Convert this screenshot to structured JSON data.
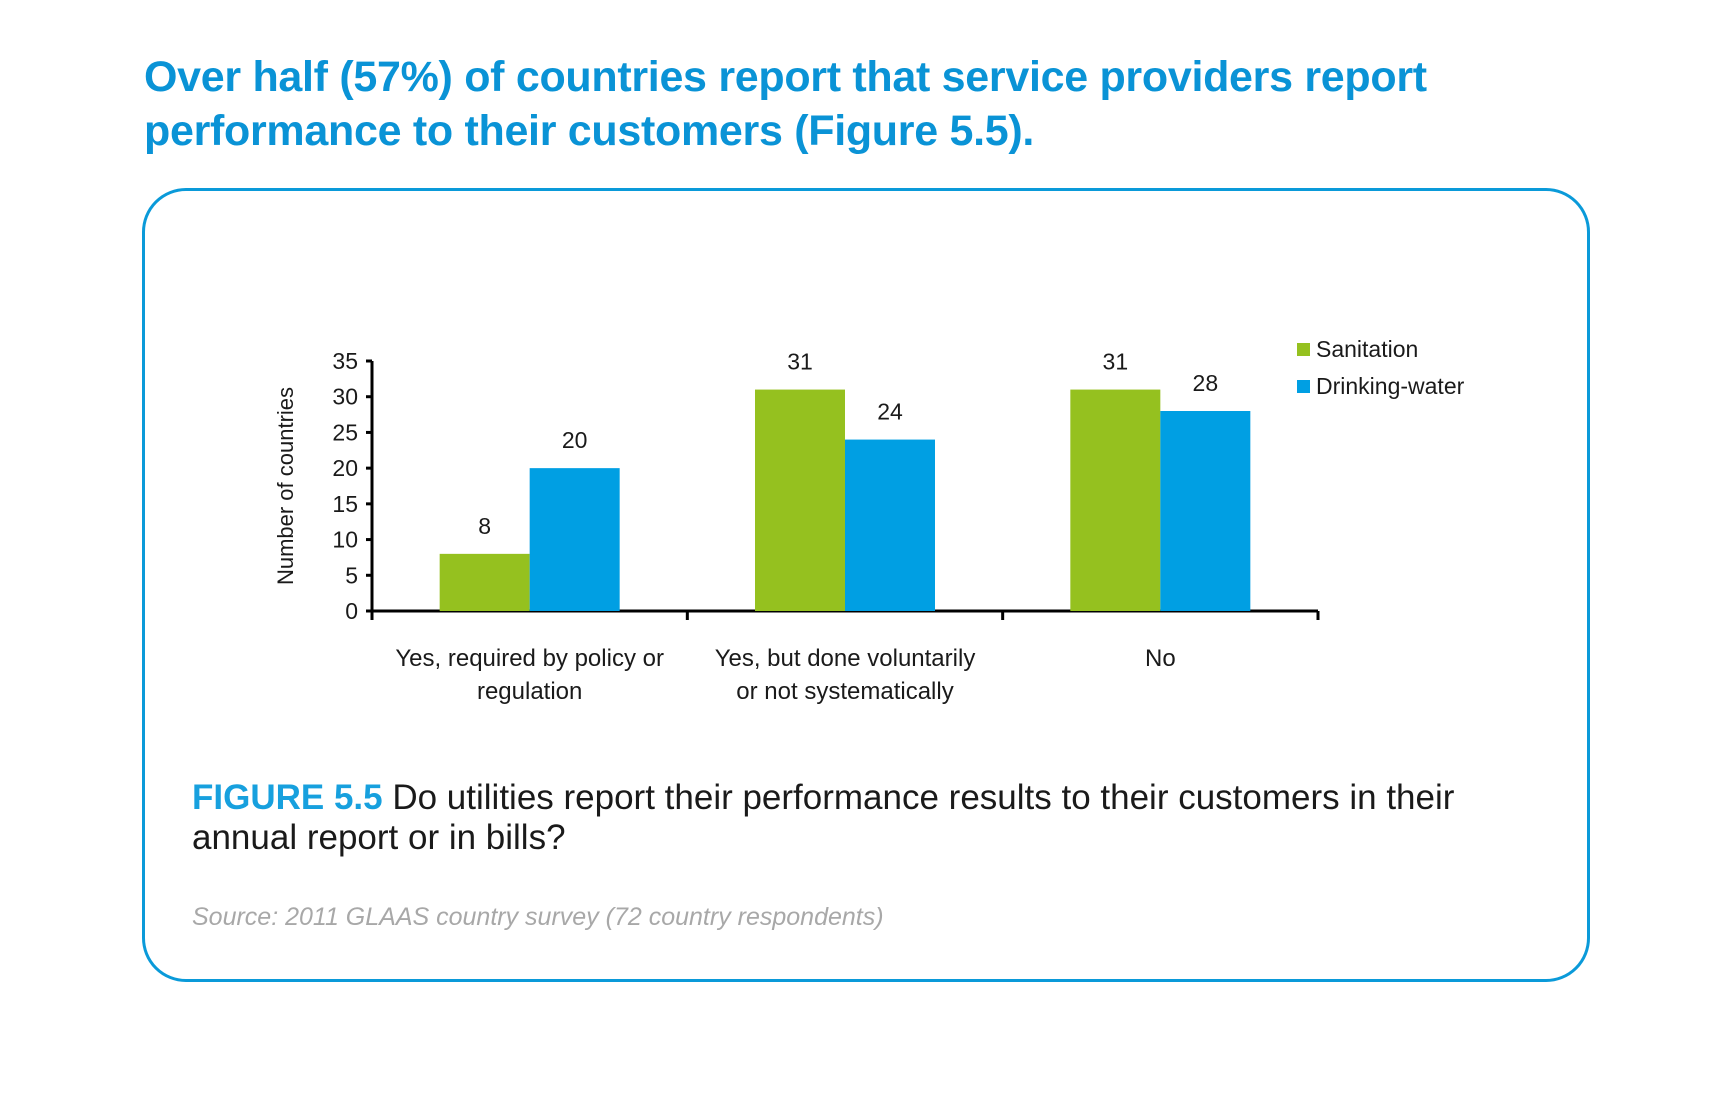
{
  "headline": "Over half (57%) of countries report that service providers report performance to their customers (Figure 5.5).",
  "caption": {
    "figure_label": "FIGURE 5.5",
    "text": " Do utilities report their performance results to their customers in their annual report or in bills?"
  },
  "source": "Source: 2011 GLAAS country survey (72 country respondents)",
  "chart_data": {
    "type": "bar",
    "title": "",
    "xlabel": "",
    "ylabel": "Number of countries",
    "ylim": [
      0,
      35
    ],
    "yticks": [
      0,
      5,
      10,
      15,
      20,
      25,
      30,
      35
    ],
    "grid": false,
    "legend_position": "top-right",
    "categories": [
      [
        "Yes, required by policy or",
        "regulation"
      ],
      [
        "Yes, but done voluntarily",
        "or not systematically"
      ],
      [
        "No"
      ]
    ],
    "series": [
      {
        "name": "Sanitation",
        "color": "#95c11f",
        "values": [
          8,
          31,
          31
        ]
      },
      {
        "name": "Drinking-water",
        "color": "#009fe3",
        "values": [
          20,
          24,
          28
        ]
      }
    ]
  }
}
